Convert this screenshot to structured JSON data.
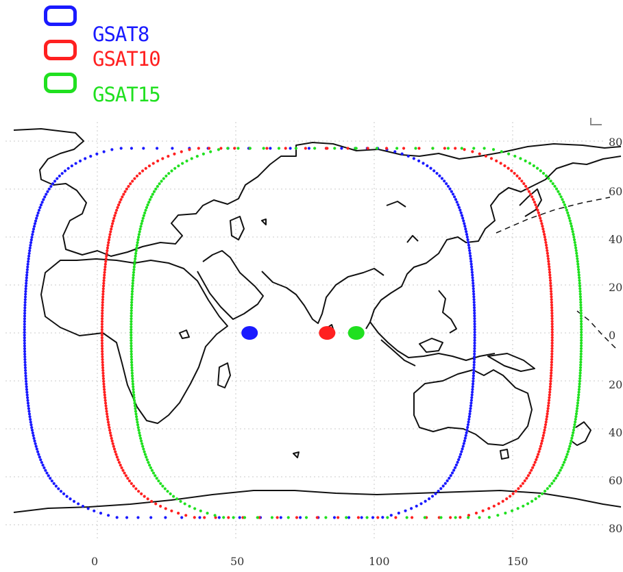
{
  "legend": {
    "items": [
      {
        "label": "GSAT8",
        "color": "#1a1aff"
      },
      {
        "label": "GSAT10",
        "color": "#ff2020"
      },
      {
        "label": "GSAT15",
        "color": "#20e020"
      }
    ]
  },
  "map": {
    "x_ticks": [
      "0",
      "50",
      "100",
      "150"
    ],
    "y_ticks": [
      "80",
      "60",
      "40",
      "20",
      "0",
      "20",
      "40",
      "60",
      "80"
    ],
    "satellites": [
      {
        "name": "GSAT8",
        "longitude": 55,
        "color": "#1a1aff"
      },
      {
        "name": "GSAT10",
        "longitude": 83,
        "color": "#ff2020"
      },
      {
        "name": "GSAT15",
        "longitude": 93.5,
        "color": "#20e020"
      }
    ],
    "land_color": "#111111",
    "grid_color": "#c8c8c8"
  }
}
